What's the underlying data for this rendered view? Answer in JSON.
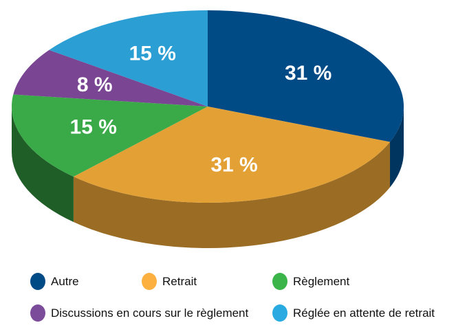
{
  "chart_data": {
    "type": "pie",
    "style": "3d",
    "categories": [
      "Autre",
      "Retrait",
      "Règlement",
      "Discussions en cours sur le règlement",
      "Réglée en attente de retrait"
    ],
    "values": [
      31,
      31,
      15,
      8,
      15
    ],
    "data_labels": [
      "31 %",
      "31 %",
      "15 %",
      "8 %",
      "15 %"
    ],
    "colors": [
      "#004a85",
      "#e3a035",
      "#3aaa48",
      "#7a4592",
      "#2b9ed4"
    ],
    "side_colors": [
      "#00355f",
      "#9a6c24",
      "#1f5e27",
      "#4f2c60",
      "#1d6a8f"
    ],
    "legend_colors": [
      "#004a85",
      "#fbb040",
      "#3bb44a",
      "#7b4c9a",
      "#29abe2"
    ],
    "legend_position": "bottom"
  }
}
